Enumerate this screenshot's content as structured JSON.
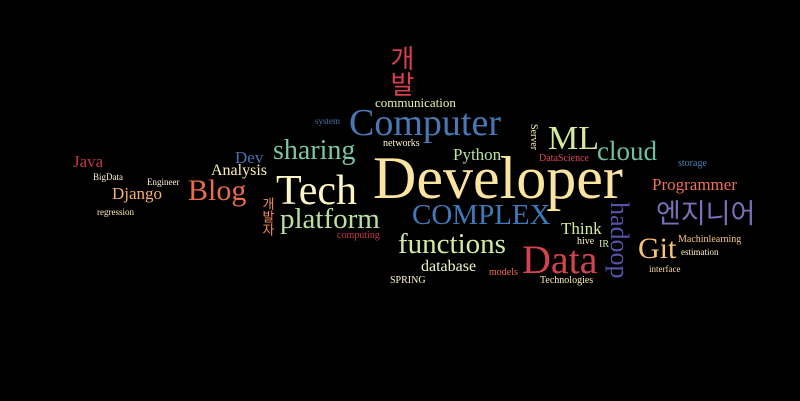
{
  "words": [
    {
      "text": "Developer",
      "color": "#fbe3a0"
    },
    {
      "text": "Computer",
      "color": "#4a77b4"
    },
    {
      "text": "Tech",
      "color": "#fdf5c4"
    },
    {
      "text": "Data",
      "color": "#d2434f"
    },
    {
      "text": "COMPLEX",
      "color": "#3f7ab8"
    },
    {
      "text": "ML",
      "color": "#d6ea9a"
    },
    {
      "text": "sharing",
      "color": "#7dc4a4"
    },
    {
      "text": "Blog",
      "color": "#ea6b4d"
    },
    {
      "text": "platform",
      "color": "#b8e0a2"
    },
    {
      "text": "functions",
      "color": "#d3eba0"
    },
    {
      "text": "cloud",
      "color": "#6dc0a3"
    },
    {
      "text": "Git",
      "color": "#fbc27a"
    },
    {
      "text": "hadoop",
      "color": "#5554a8"
    },
    {
      "text": "엔지니어",
      "color": "#7a6fb8"
    },
    {
      "text": "개발",
      "color": "#d6404e"
    },
    {
      "text": "Programmer",
      "color": "#f06f5a"
    },
    {
      "text": "Python",
      "color": "#b9e1a0"
    },
    {
      "text": "Think",
      "color": "#d7ee9a"
    },
    {
      "text": "Analysis",
      "color": "#fdf0b0"
    },
    {
      "text": "Dev",
      "color": "#4b6fad"
    },
    {
      "text": "Django",
      "color": "#f6b172"
    },
    {
      "text": "Java",
      "color": "#c23345"
    },
    {
      "text": "database",
      "color": "#f0f6c0"
    },
    {
      "text": "communication",
      "color": "#e8f4a8"
    },
    {
      "text": "개발자",
      "color": "#f48a5c"
    },
    {
      "text": "networks",
      "color": "#fef6cc"
    },
    {
      "text": "system",
      "color": "#4a6eb0"
    },
    {
      "text": "Server",
      "color": "#fef0b4"
    },
    {
      "text": "DataScience",
      "color": "#e2445a"
    },
    {
      "text": "IR",
      "color": "#d8eeaa"
    },
    {
      "text": "hive",
      "color": "#fdf0c0"
    },
    {
      "text": "storage",
      "color": "#4a80b6"
    },
    {
      "text": "Machinlearning",
      "color": "#fbc57a"
    },
    {
      "text": "estimation",
      "color": "#fff2c0"
    },
    {
      "text": "interface",
      "color": "#fbd99a"
    },
    {
      "text": "Technologies",
      "color": "#fdeeb0"
    },
    {
      "text": "models",
      "color": "#f06a58"
    },
    {
      "text": "SPRING",
      "color": "#fff6d0"
    },
    {
      "text": "computing",
      "color": "#c4344a"
    },
    {
      "text": "BigData",
      "color": "#fff5d8"
    },
    {
      "text": "Engineer",
      "color": "#fff6d8"
    },
    {
      "text": "regression",
      "color": "#fee9b0"
    }
  ]
}
